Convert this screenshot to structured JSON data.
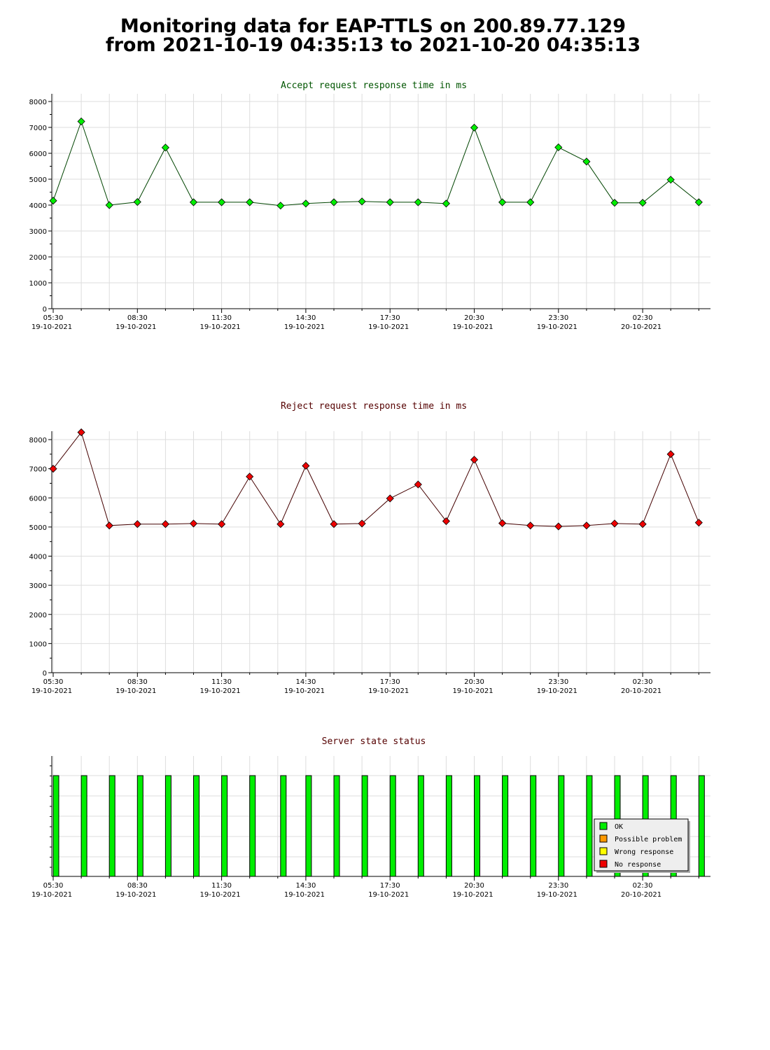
{
  "page": {
    "title_line1": "Monitoring data for EAP-TTLS on 200.89.77.129",
    "title_line2": "from 2021-10-19 04:35:13 to 2021-10-20 04:35:13"
  },
  "colors": {
    "accept_title": "#005500",
    "reject_title": "#550000",
    "status_title": "#550000",
    "accept_marker": "#00ee00",
    "accept_line": "#004400",
    "reject_marker": "#ee0000",
    "reject_line": "#440000",
    "ok": "#00ee00",
    "possible_problem": "#ff9900",
    "wrong_response": "#ffff00",
    "no_response": "#ee0000",
    "grid": "#dddddd"
  },
  "x_ticks": [
    {
      "time": "05:30",
      "date": "19-10-2021"
    },
    {
      "time": "08:30",
      "date": "19-10-2021"
    },
    {
      "time": "11:30",
      "date": "19-10-2021"
    },
    {
      "time": "14:30",
      "date": "19-10-2021"
    },
    {
      "time": "17:30",
      "date": "19-10-2021"
    },
    {
      "time": "20:30",
      "date": "19-10-2021"
    },
    {
      "time": "23:30",
      "date": "19-10-2021"
    },
    {
      "time": "02:30",
      "date": "20-10-2021"
    }
  ],
  "chart_data": [
    {
      "type": "line",
      "title": "Accept request response time in ms",
      "xlabel": "",
      "ylabel": "",
      "ylim": [
        0,
        8000
      ],
      "yticks": [
        0,
        1000,
        2000,
        3000,
        4000,
        5000,
        6000,
        7000,
        8000
      ],
      "grid": true,
      "x_hours": [
        0,
        1,
        2,
        3,
        4,
        5,
        6,
        7,
        8.1,
        9,
        10,
        11,
        12,
        13,
        14,
        15,
        16,
        17,
        18,
        19,
        20,
        21,
        22,
        23
      ],
      "series": [
        {
          "values": [
            4170,
            7230,
            4000,
            4120,
            6220,
            4110,
            4110,
            4110,
            3980,
            4060,
            4110,
            4140,
            4110,
            4110,
            4060,
            6990,
            4110,
            4110,
            6230,
            5680,
            4090,
            4090,
            4980,
            4110
          ]
        }
      ]
    },
    {
      "type": "line",
      "title": "Reject request response time in ms",
      "xlabel": "",
      "ylabel": "",
      "ylim": [
        0,
        8000
      ],
      "yticks": [
        0,
        1000,
        2000,
        3000,
        4000,
        5000,
        6000,
        7000,
        8000
      ],
      "grid": true,
      "x_hours": [
        0,
        1,
        2,
        3,
        4,
        5,
        6,
        7,
        8.1,
        9,
        10,
        11,
        12,
        13,
        14,
        15,
        16,
        17,
        18,
        19,
        20,
        21,
        22,
        23
      ],
      "series": [
        {
          "values": [
            7000,
            8250,
            5050,
            5100,
            5100,
            5120,
            5100,
            6730,
            5100,
            7100,
            5100,
            5120,
            5980,
            6460,
            5200,
            7310,
            5130,
            5050,
            5020,
            5050,
            5120,
            5100,
            7500,
            5150
          ]
        }
      ]
    },
    {
      "type": "bar",
      "title": "Server state status",
      "x_hours": [
        0,
        1,
        2,
        3,
        4,
        5,
        6,
        7,
        8.1,
        9,
        10,
        11,
        12,
        13,
        14,
        15,
        16,
        17,
        18,
        19,
        20,
        21,
        22,
        23
      ],
      "status": [
        "ok",
        "ok",
        "ok",
        "ok",
        "ok",
        "ok",
        "ok",
        "ok",
        "ok",
        "ok",
        "ok",
        "ok",
        "ok",
        "ok",
        "ok",
        "ok",
        "ok",
        "ok",
        "ok",
        "ok",
        "ok",
        "ok",
        "ok",
        "ok"
      ],
      "legend": [
        {
          "key": "ok",
          "label": "OK"
        },
        {
          "key": "possible_problem",
          "label": "Possible problem"
        },
        {
          "key": "wrong_response",
          "label": "Wrong response"
        },
        {
          "key": "no_response",
          "label": "No response"
        }
      ],
      "legend_position": "bottom-right",
      "grid": true
    }
  ]
}
